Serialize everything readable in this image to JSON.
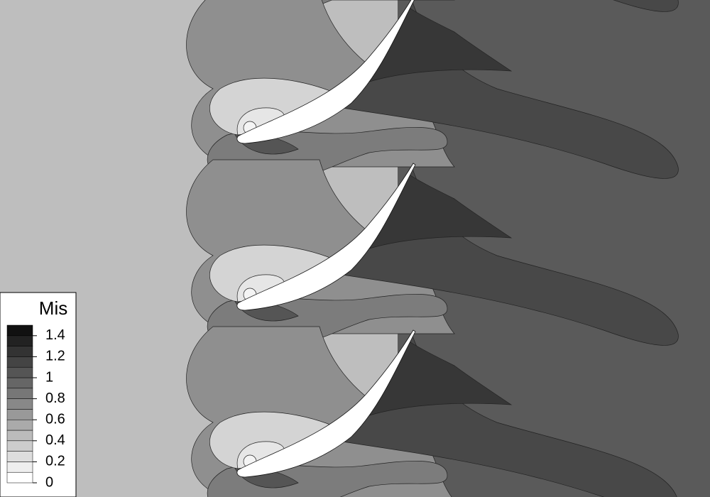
{
  "chart_data": {
    "type": "contour",
    "colorbar": {
      "title": "Mis",
      "levels": [
        0,
        0.1,
        0.2,
        0.3,
        0.4,
        0.5,
        0.6,
        0.7,
        0.8,
        0.9,
        1,
        1.1,
        1.2,
        1.3,
        1.4,
        1.5
      ],
      "colors": [
        "#ffffff",
        "#eeeeee",
        "#dddddd",
        "#cccccc",
        "#bbbbbb",
        "#aaaaaa",
        "#999999",
        "#888888",
        "#777777",
        "#666666",
        "#555555",
        "#444444",
        "#333333",
        "#222222",
        "#111111"
      ],
      "lim": [
        0,
        1.5
      ],
      "ticks": [
        0,
        0.2,
        0.4,
        0.6,
        0.8,
        1,
        1.2,
        1.4
      ]
    }
  }
}
